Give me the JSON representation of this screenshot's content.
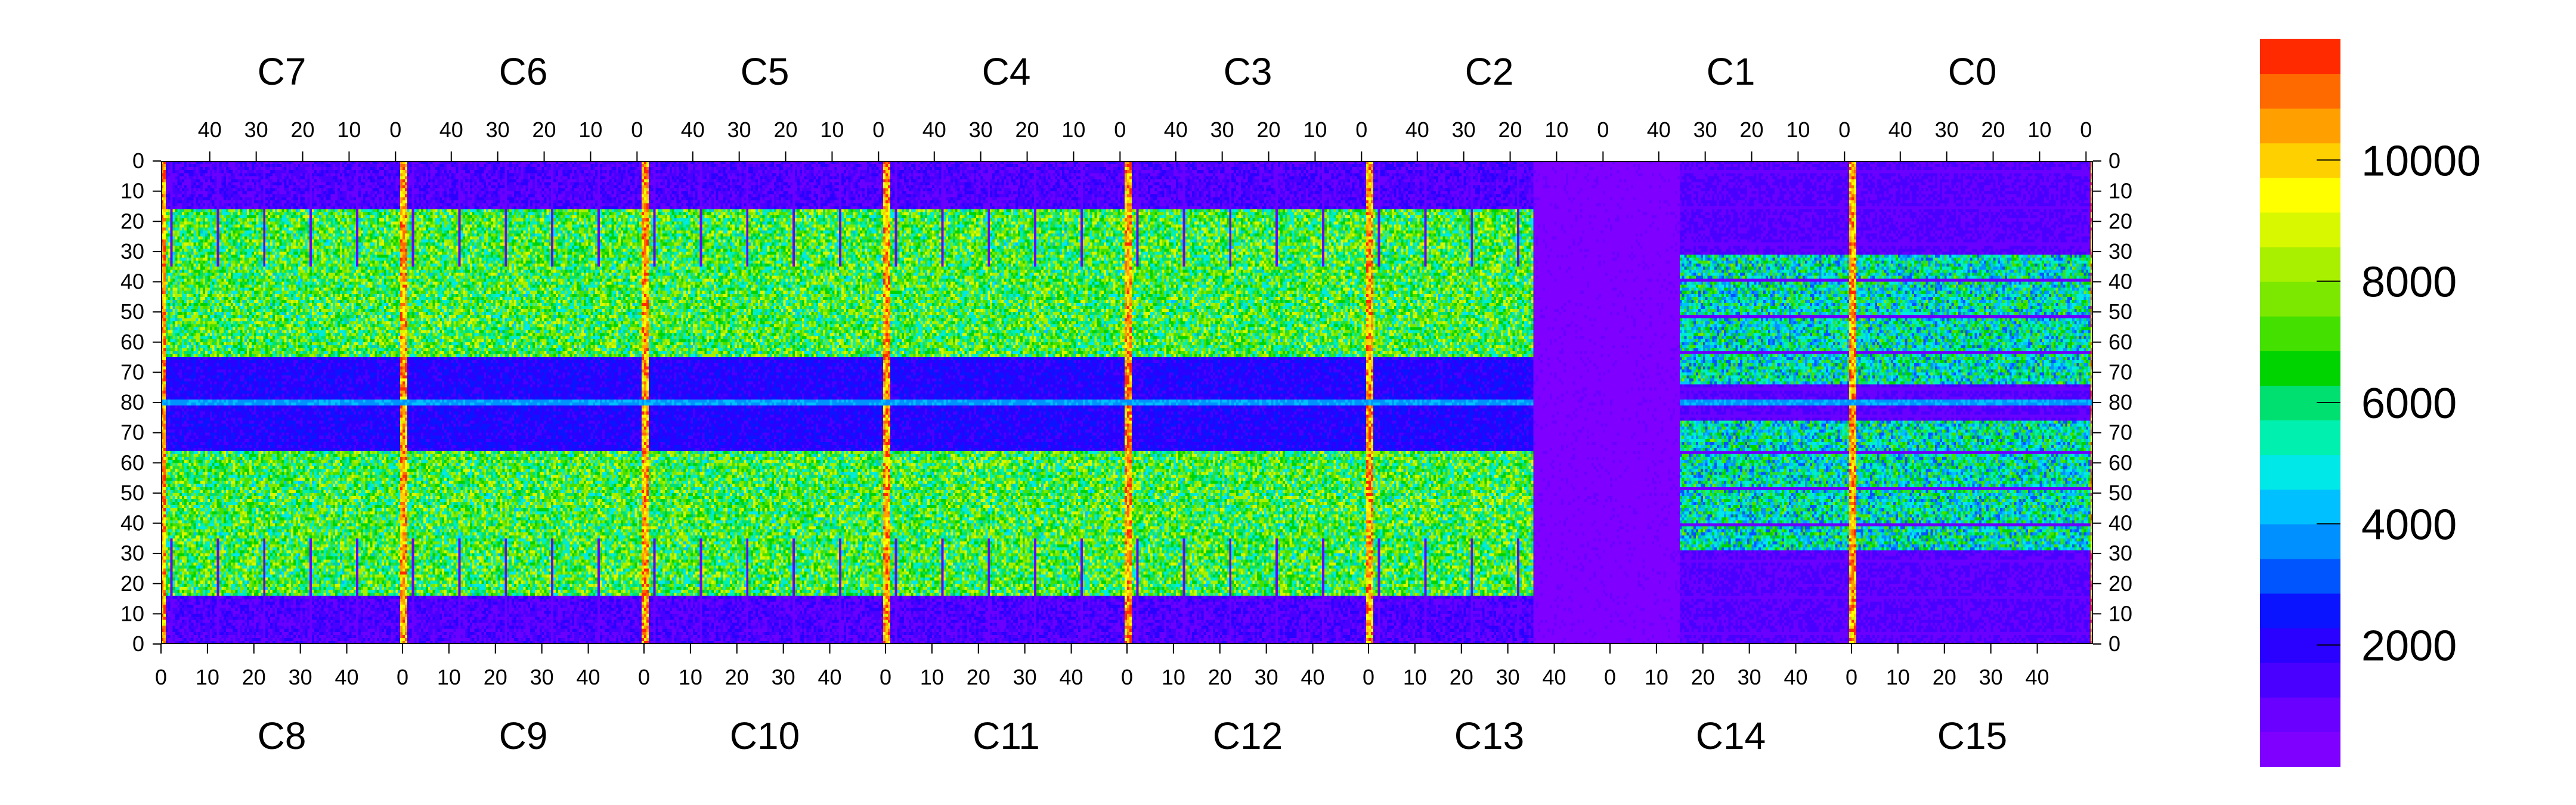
{
  "chart_data": {
    "type": "heatmap",
    "top_chip_labels": [
      "C7",
      "C6",
      "C5",
      "C4",
      "C3",
      "C2",
      "C1",
      "C0"
    ],
    "bottom_chip_labels": [
      "C8",
      "C9",
      "C10",
      "C11",
      "C12",
      "C13",
      "C14",
      "C15"
    ],
    "top_x_ticks": [
      "40",
      "30",
      "20",
      "10",
      "0"
    ],
    "bottom_x_ticks": [
      "0",
      "10",
      "20",
      "30",
      "40"
    ],
    "top_row_ticks": [
      "0",
      "10",
      "20",
      "30",
      "40",
      "50",
      "60",
      "70",
      "80"
    ],
    "bottom_row_ticks": [
      "80",
      "70",
      "60",
      "50",
      "40",
      "30",
      "20",
      "10",
      "0"
    ],
    "columns_per_chip": 52,
    "rows_per_half": 80,
    "z_range": [
      0,
      12000
    ],
    "colorbar_ticks": [
      "2000",
      "4000",
      "6000",
      "8000",
      "10000"
    ],
    "colorbar_palette": [
      "#7f00ff",
      "#6a00ff",
      "#4a00ff",
      "#2a00ff",
      "#0a14ff",
      "#0055ff",
      "#0090ff",
      "#00c0ff",
      "#00e8e8",
      "#00f0b0",
      "#00e070",
      "#00d400",
      "#44e000",
      "#7ce800",
      "#a8f000",
      "#d8f800",
      "#ffff00",
      "#ffd000",
      "#ffa000",
      "#ff6a00",
      "#ff2a00"
    ],
    "grid": false,
    "legend": "colorbar right"
  }
}
